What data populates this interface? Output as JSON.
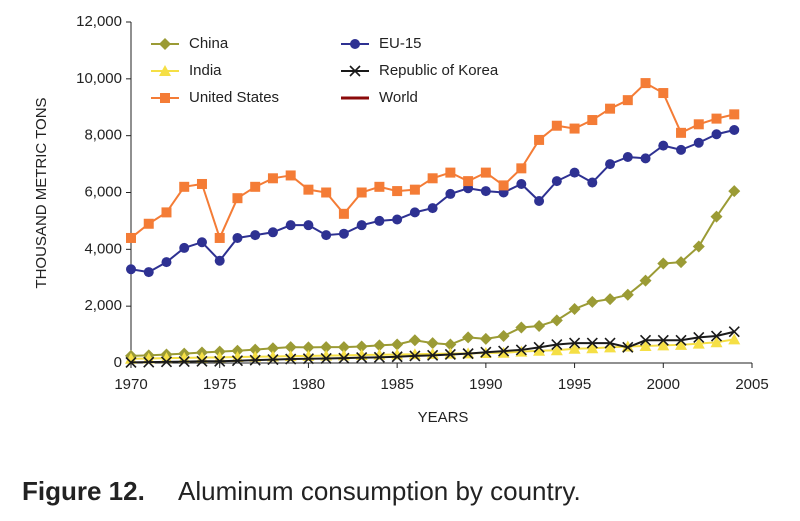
{
  "chart_data": {
    "type": "line",
    "y_label": "THOUSAND METRIC TONS",
    "x_label": "YEARS",
    "figure_label": "Figure 12.",
    "caption": "Aluminum consumption by country.",
    "x": [
      1970,
      1971,
      1972,
      1973,
      1974,
      1975,
      1976,
      1977,
      1978,
      1979,
      1980,
      1981,
      1982,
      1983,
      1984,
      1985,
      1986,
      1987,
      1988,
      1989,
      1990,
      1991,
      1992,
      1993,
      1994,
      1995,
      1996,
      1997,
      1998,
      1999,
      2000,
      2001,
      2002,
      2003,
      2004
    ],
    "xlim": [
      1970,
      2005
    ],
    "xticks": [
      1970,
      1975,
      1980,
      1985,
      1990,
      1995,
      2000,
      2005
    ],
    "ylim": [
      0,
      12000
    ],
    "yticks": [
      0,
      {
        "value": 2000,
        "label": "2,000"
      },
      {
        "value": 4000,
        "label": "4,000"
      },
      {
        "value": 6000,
        "label": "6,000"
      },
      {
        "value": 8000,
        "label": "8,000"
      },
      {
        "value": 10000,
        "label": "10,000"
      },
      {
        "value": 12000,
        "label": "12,000"
      }
    ],
    "series": [
      {
        "name": "China",
        "color": "#9b9b35",
        "marker": "diamond",
        "values": [
          250,
          270,
          300,
          330,
          370,
          400,
          430,
          470,
          520,
          560,
          550,
          560,
          560,
          580,
          620,
          650,
          800,
          700,
          650,
          900,
          850,
          950,
          1250,
          1300,
          1500,
          1900,
          2150,
          2250,
          2400,
          2900,
          3500,
          3550,
          4100,
          5150,
          6050
        ]
      },
      {
        "name": "EU-15",
        "color": "#2e3192",
        "marker": "circle",
        "values": [
          3300,
          3200,
          3550,
          4050,
          4250,
          3600,
          4400,
          4500,
          4600,
          4850,
          4850,
          4500,
          4550,
          4850,
          5000,
          5050,
          5300,
          5450,
          5950,
          6150,
          6050,
          6000,
          6300,
          5700,
          6400,
          6700,
          6350,
          7000,
          7250,
          7200,
          7650,
          7500,
          7750,
          8050,
          8200
        ]
      },
      {
        "name": "India",
        "color": "#f5df45",
        "marker": "triangle",
        "values": [
          150,
          160,
          170,
          180,
          190,
          200,
          210,
          220,
          230,
          240,
          250,
          260,
          270,
          280,
          290,
          300,
          310,
          320,
          330,
          340,
          350,
          360,
          400,
          430,
          450,
          500,
          520,
          550,
          580,
          600,
          620,
          640,
          680,
          730,
          830
        ]
      },
      {
        "name": "Republic of Korea",
        "color": "#1a1a1a",
        "marker": "x",
        "values": [
          20,
          30,
          40,
          50,
          60,
          60,
          80,
          100,
          120,
          140,
          150,
          160,
          170,
          190,
          200,
          220,
          250,
          270,
          300,
          330,
          380,
          420,
          460,
          550,
          650,
          700,
          700,
          700,
          550,
          800,
          800,
          800,
          900,
          950,
          1100
        ]
      },
      {
        "name": "United States",
        "color": "#f47c36",
        "marker": "square",
        "values": [
          4400,
          4900,
          5300,
          6200,
          6300,
          4400,
          5800,
          6200,
          6500,
          6600,
          6100,
          6000,
          5250,
          6000,
          6200,
          6050,
          6100,
          6500,
          6700,
          6400,
          6700,
          6250,
          6850,
          7850,
          8350,
          8250,
          8550,
          8950,
          9250,
          9850,
          9500,
          8100,
          8400,
          8600,
          8750
        ]
      },
      {
        "name": "World",
        "color": "#8b0a0a",
        "marker": "none",
        "values": [
          null,
          null,
          null,
          null,
          null,
          null,
          null,
          null,
          null,
          null,
          null,
          null,
          null,
          null,
          null,
          null,
          null,
          null,
          null,
          null,
          null,
          null,
          null,
          null,
          null,
          null,
          null,
          null,
          null,
          null,
          null,
          null,
          null,
          null,
          null
        ]
      }
    ]
  }
}
